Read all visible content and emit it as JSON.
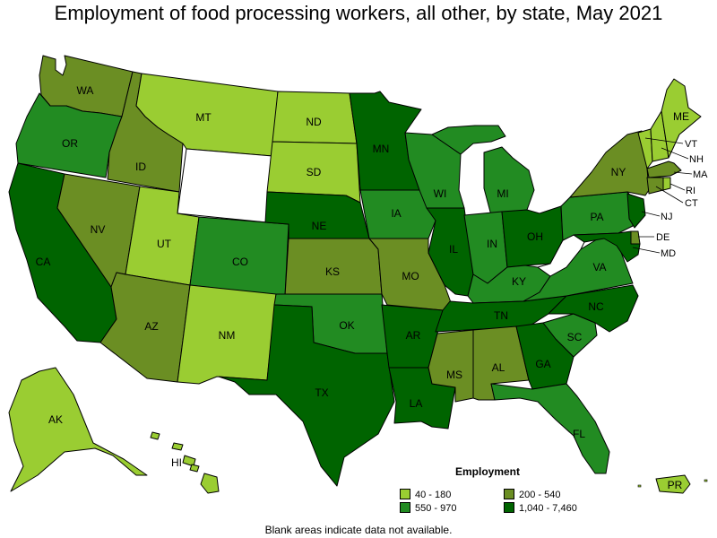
{
  "title": "Employment of food processing workers, all other, by state, May 2021",
  "legend": {
    "title": "Employment",
    "bins": [
      {
        "label": "40 - 180",
        "color": "#9ACD32"
      },
      {
        "label": "200 - 540",
        "color": "#6B8E23"
      },
      {
        "label": "550 - 970",
        "color": "#228B22"
      },
      {
        "label": "1,040 - 7,460",
        "color": "#006400"
      }
    ]
  },
  "note": "Blank areas indicate data not available.",
  "no_data_color": "#FFFFFF",
  "states": [
    {
      "abbr": "WA",
      "bin": 1
    },
    {
      "abbr": "OR",
      "bin": 2
    },
    {
      "abbr": "CA",
      "bin": 3
    },
    {
      "abbr": "ID",
      "bin": 1
    },
    {
      "abbr": "NV",
      "bin": 1
    },
    {
      "abbr": "MT",
      "bin": 0
    },
    {
      "abbr": "WY",
      "bin": null
    },
    {
      "abbr": "UT",
      "bin": 0
    },
    {
      "abbr": "CO",
      "bin": 2
    },
    {
      "abbr": "AZ",
      "bin": 1
    },
    {
      "abbr": "NM",
      "bin": 0
    },
    {
      "abbr": "ND",
      "bin": 0
    },
    {
      "abbr": "SD",
      "bin": 0
    },
    {
      "abbr": "NE",
      "bin": 3
    },
    {
      "abbr": "KS",
      "bin": 1
    },
    {
      "abbr": "OK",
      "bin": 2
    },
    {
      "abbr": "TX",
      "bin": 3
    },
    {
      "abbr": "MN",
      "bin": 3
    },
    {
      "abbr": "IA",
      "bin": 2
    },
    {
      "abbr": "MO",
      "bin": 1
    },
    {
      "abbr": "AR",
      "bin": 3
    },
    {
      "abbr": "LA",
      "bin": 3
    },
    {
      "abbr": "WI",
      "bin": 2
    },
    {
      "abbr": "IL",
      "bin": 3
    },
    {
      "abbr": "MI",
      "bin": 2
    },
    {
      "abbr": "IN",
      "bin": 2
    },
    {
      "abbr": "OH",
      "bin": 3
    },
    {
      "abbr": "KY",
      "bin": 2
    },
    {
      "abbr": "TN",
      "bin": 3
    },
    {
      "abbr": "MS",
      "bin": 1
    },
    {
      "abbr": "AL",
      "bin": 1
    },
    {
      "abbr": "GA",
      "bin": 3
    },
    {
      "abbr": "FL",
      "bin": 2
    },
    {
      "abbr": "SC",
      "bin": 2
    },
    {
      "abbr": "NC",
      "bin": 3
    },
    {
      "abbr": "VA",
      "bin": 2
    },
    {
      "abbr": "WV",
      "bin": null
    },
    {
      "abbr": "PA",
      "bin": 2
    },
    {
      "abbr": "NY",
      "bin": 1
    },
    {
      "abbr": "VT",
      "bin": 0
    },
    {
      "abbr": "NH",
      "bin": 0
    },
    {
      "abbr": "ME",
      "bin": 0
    },
    {
      "abbr": "MA",
      "bin": 1
    },
    {
      "abbr": "RI",
      "bin": 0
    },
    {
      "abbr": "CT",
      "bin": 1
    },
    {
      "abbr": "NJ",
      "bin": 3
    },
    {
      "abbr": "DE",
      "bin": 1
    },
    {
      "abbr": "MD",
      "bin": 3
    },
    {
      "abbr": "AK",
      "bin": 0
    },
    {
      "abbr": "HI",
      "bin": 0
    },
    {
      "abbr": "PR",
      "bin": 0
    }
  ]
}
